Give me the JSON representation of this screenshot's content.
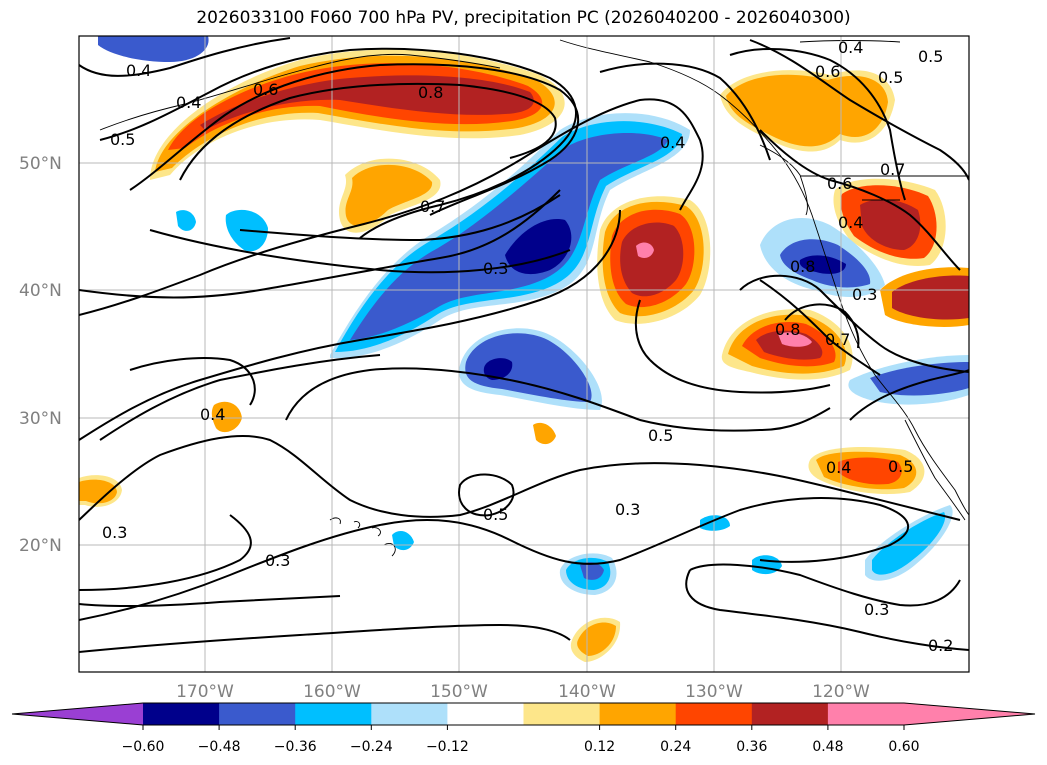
{
  "title": "2026033100 F060 700 hPa PV, precipitation PC (2026040200 - 2026040300)",
  "colors": {
    "n060": "#9a3fd3",
    "n048": "#00008b",
    "n036": "#3a5acd",
    "n024": "#00bfff",
    "n012": "#aee0fa",
    "zero": "#ffffff",
    "p012": "#fde68a",
    "p024": "#ffa500",
    "p036": "#ff4500",
    "p048": "#b22222",
    "p060": "#ff80ab",
    "p072": "#ff80ab"
  },
  "lat_labels": [
    "50°N",
    "40°N",
    "30°N",
    "20°N"
  ],
  "lon_labels": [
    "170°W",
    "160°W",
    "150°W",
    "140°W",
    "130°W",
    "120°W"
  ],
  "contour_labels": [
    "0.4",
    "0.4",
    "0.6",
    "0.8",
    "0.5",
    "0.4",
    "0.6",
    "0.5",
    "0.7",
    "0.5",
    "0.4",
    "0.3",
    "0.6",
    "0.7",
    "0.4",
    "0.8",
    "0.8",
    "0.7",
    "0.3",
    "0.4",
    "0.5",
    "0.5",
    "0.4",
    "0.5",
    "0.3",
    "0.3",
    "0.3",
    "0.3",
    "0.2"
  ],
  "colorbar": {
    "ticks": [
      "−0.60",
      "−0.48",
      "−0.36",
      "−0.24",
      "−0.12",
      "0.12",
      "0.24",
      "0.36",
      "0.48",
      "0.60"
    ],
    "swatches": [
      "n048",
      "n036",
      "n024",
      "n012",
      "zero",
      "p012",
      "p024",
      "p036",
      "p048",
      "p060"
    ]
  }
}
